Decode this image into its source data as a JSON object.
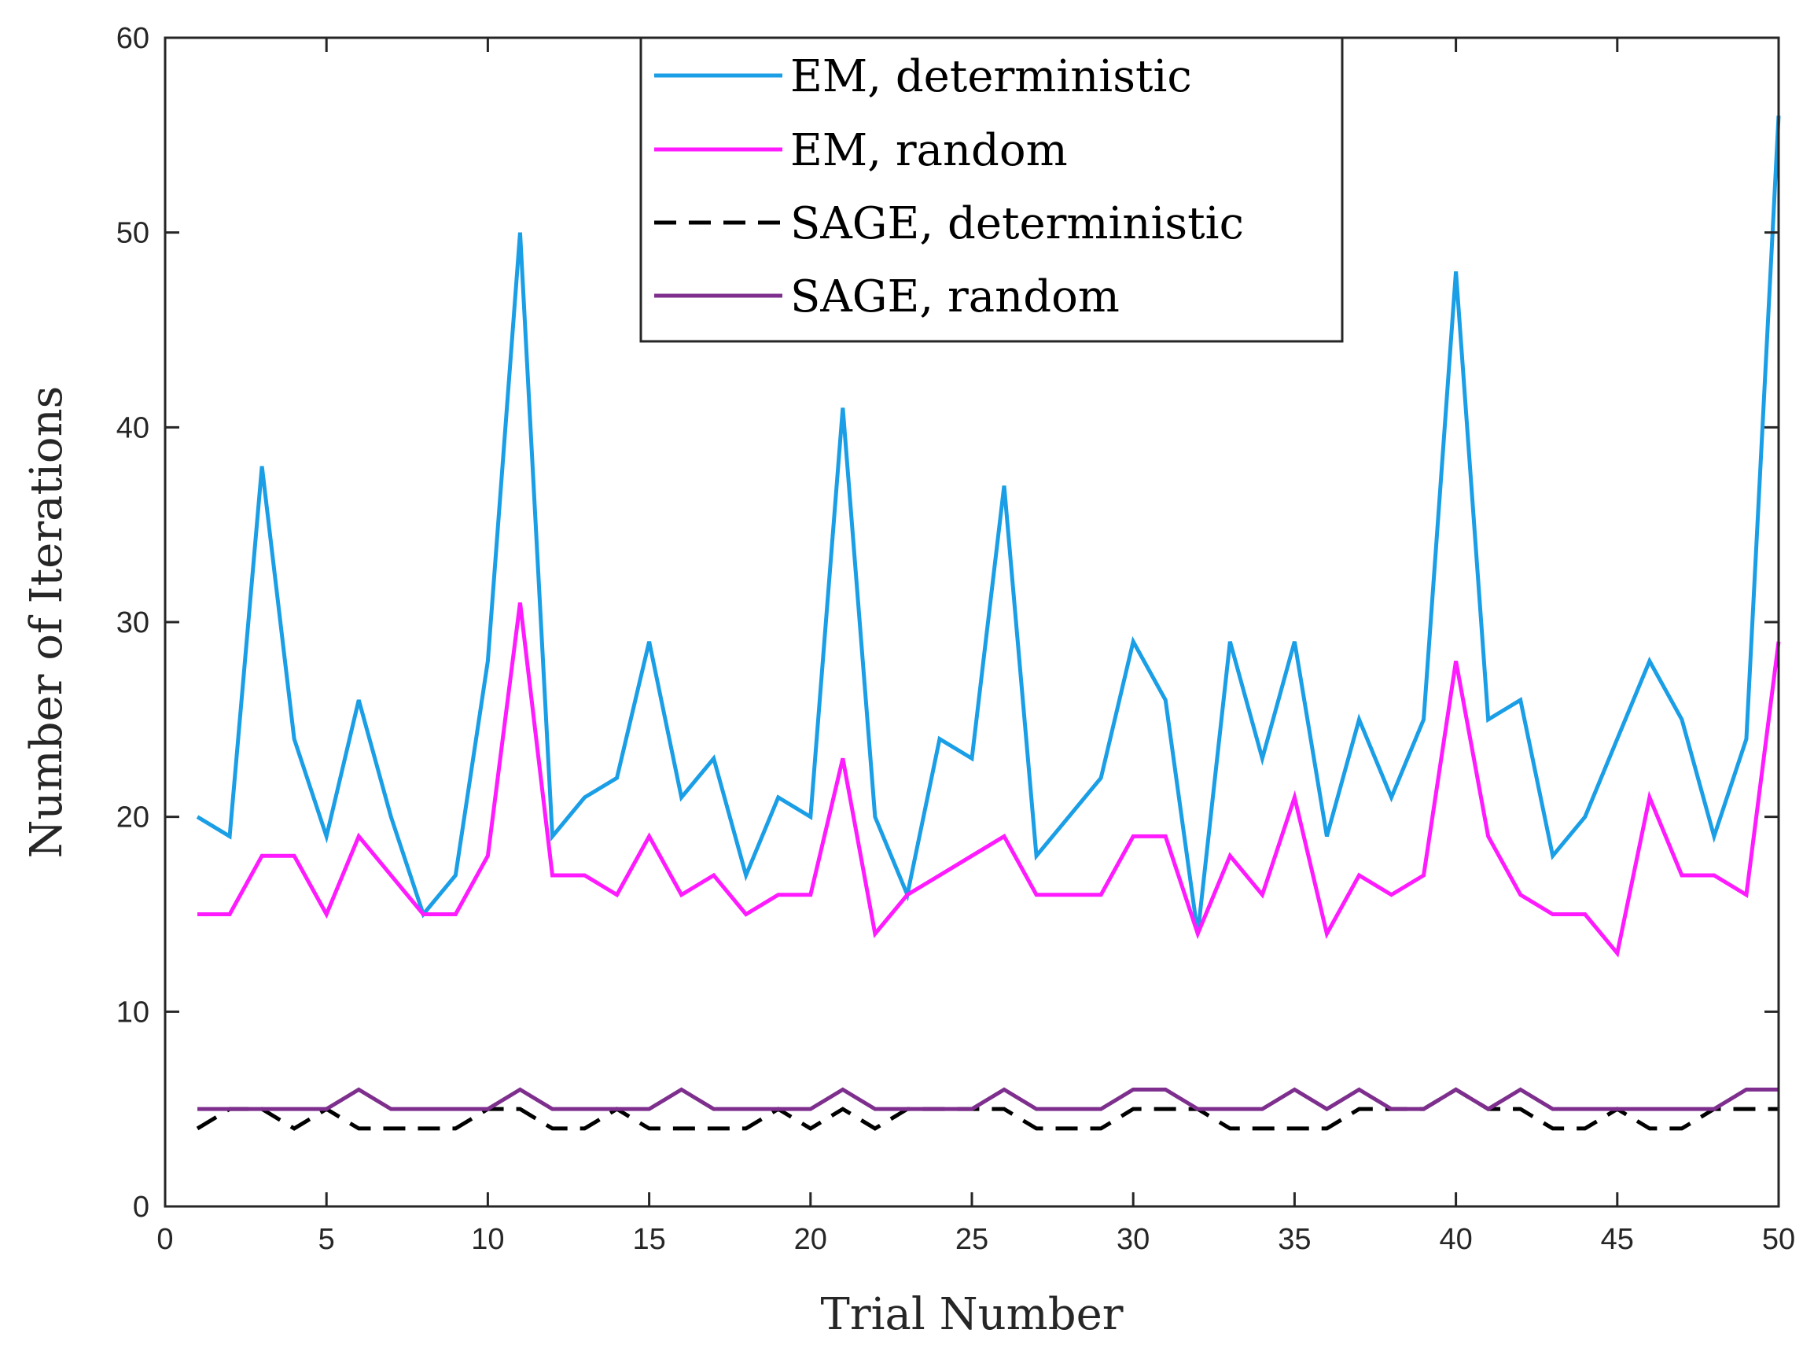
{
  "chart_data": {
    "type": "line",
    "title": "",
    "xlabel": "Trial Number",
    "ylabel": "Number of Iterations",
    "xlim": [
      0,
      50
    ],
    "ylim": [
      0,
      60
    ],
    "xticks": [
      0,
      5,
      10,
      15,
      20,
      25,
      30,
      35,
      40,
      45,
      50
    ],
    "yticks": [
      0,
      10,
      20,
      30,
      40,
      50,
      60
    ],
    "xtick_labels": [
      "0",
      "5",
      "10",
      "15",
      "20",
      "25",
      "30",
      "35",
      "40",
      "45",
      "50"
    ],
    "ytick_labels": [
      "0",
      "10",
      "20",
      "30",
      "40",
      "50",
      "60"
    ],
    "grid": false,
    "legend_position": "top-center",
    "x": [
      1,
      2,
      3,
      4,
      5,
      6,
      7,
      8,
      9,
      10,
      11,
      12,
      13,
      14,
      15,
      16,
      17,
      18,
      19,
      20,
      21,
      22,
      23,
      24,
      25,
      26,
      27,
      28,
      29,
      30,
      31,
      32,
      33,
      34,
      35,
      36,
      37,
      38,
      39,
      40,
      41,
      42,
      43,
      44,
      45,
      46,
      47,
      48,
      49,
      50
    ],
    "series": [
      {
        "name": "EM, deterministic",
        "color": "#1a9ee6",
        "style": "solid",
        "values": [
          20,
          19,
          38,
          24,
          19,
          26,
          20,
          15,
          17,
          28,
          50,
          19,
          21,
          22,
          29,
          21,
          23,
          17,
          21,
          20,
          41,
          20,
          16,
          24,
          23,
          37,
          18,
          20,
          22,
          29,
          26,
          14,
          29,
          23,
          29,
          19,
          25,
          21,
          25,
          48,
          25,
          26,
          18,
          20,
          24,
          28,
          25,
          19,
          24,
          56
        ]
      },
      {
        "name": "EM, random",
        "color": "#ff1aff",
        "style": "solid",
        "values": [
          15,
          15,
          18,
          18,
          15,
          19,
          17,
          15,
          15,
          18,
          31,
          17,
          17,
          16,
          19,
          16,
          17,
          15,
          16,
          16,
          23,
          14,
          16,
          17,
          18,
          19,
          16,
          16,
          16,
          19,
          19,
          14,
          18,
          16,
          21,
          14,
          17,
          16,
          17,
          28,
          19,
          16,
          15,
          15,
          13,
          21,
          17,
          17,
          16,
          29
        ]
      },
      {
        "name": "SAGE, deterministic",
        "color": "#000000",
        "style": "dashed",
        "values": [
          4,
          5,
          5,
          4,
          5,
          4,
          4,
          4,
          4,
          5,
          5,
          4,
          4,
          5,
          4,
          4,
          4,
          4,
          5,
          4,
          5,
          4,
          5,
          5,
          5,
          5,
          4,
          4,
          4,
          5,
          5,
          5,
          4,
          4,
          4,
          4,
          5,
          5,
          5,
          6,
          5,
          5,
          4,
          4,
          5,
          4,
          4,
          5,
          5,
          5
        ]
      },
      {
        "name": "SAGE, random",
        "color": "#7e2f8e",
        "style": "solid",
        "values": [
          5,
          5,
          5,
          5,
          5,
          6,
          5,
          5,
          5,
          5,
          6,
          5,
          5,
          5,
          5,
          6,
          5,
          5,
          5,
          5,
          6,
          5,
          5,
          5,
          5,
          6,
          5,
          5,
          5,
          6,
          6,
          5,
          5,
          5,
          6,
          5,
          6,
          5,
          5,
          6,
          5,
          6,
          5,
          5,
          5,
          5,
          5,
          5,
          6,
          6
        ]
      }
    ]
  }
}
